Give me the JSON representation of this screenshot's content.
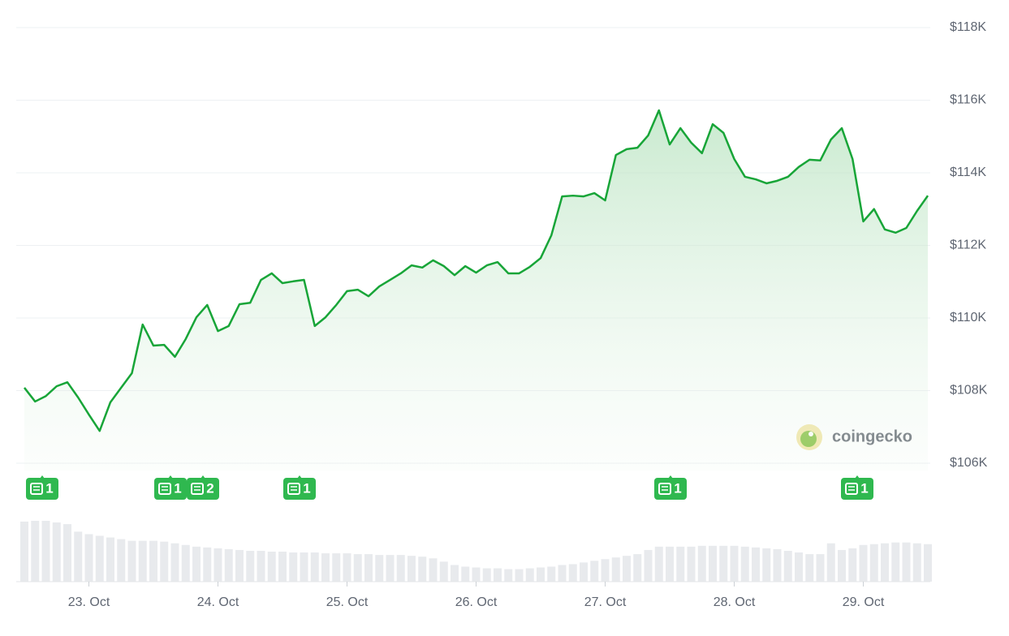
{
  "chart_data": {
    "type": "line",
    "color": "#18a538",
    "categories": [
      null,
      null,
      null,
      null,
      null,
      null,
      "23. Oct",
      null,
      null,
      null,
      null,
      null,
      null,
      null,
      null,
      null,
      null,
      null,
      "24. Oct",
      null,
      null,
      null,
      null,
      null,
      null,
      null,
      null,
      null,
      null,
      null,
      "25. Oct",
      null,
      null,
      null,
      null,
      null,
      null,
      null,
      null,
      null,
      null,
      null,
      "26. Oct",
      null,
      null,
      null,
      null,
      null,
      null,
      null,
      null,
      null,
      null,
      null,
      "27. Oct",
      null,
      null,
      null,
      null,
      null,
      null,
      null,
      null,
      null,
      null,
      null,
      "28. Oct",
      null,
      null,
      null,
      null,
      null,
      null,
      null,
      null,
      null,
      null,
      null,
      "29. Oct",
      null,
      null,
      null,
      null,
      null,
      null
    ],
    "values": [
      108080,
      107700,
      107850,
      108120,
      108230,
      107810,
      107340,
      106890,
      107680,
      108080,
      108480,
      109820,
      109240,
      109260,
      108930,
      109420,
      110020,
      110360,
      109640,
      109780,
      110380,
      110420,
      111050,
      111230,
      110960,
      111010,
      111050,
      109780,
      110020,
      110360,
      110740,
      110780,
      110600,
      110870,
      111050,
      111230,
      111450,
      111390,
      111590,
      111430,
      111180,
      111430,
      111250,
      111450,
      111540,
      111230,
      111230,
      111410,
      111650,
      112280,
      113350,
      113370,
      113350,
      113440,
      113240,
      114490,
      114650,
      114690,
      115030,
      115720,
      114780,
      115230,
      114830,
      114540,
      115340,
      115100,
      114380,
      113890,
      113820,
      113710,
      113780,
      113890,
      114160,
      114360,
      114340,
      114920,
      115230,
      114380,
      112660,
      113000,
      112440,
      112350,
      112480,
      112950,
      113370
    ],
    "volume": {
      "color": "#e8eaed",
      "values": [
        72,
        73,
        73,
        71,
        69,
        60,
        57,
        55,
        53,
        51,
        49,
        49,
        49,
        48,
        46,
        44,
        42,
        41,
        40,
        39,
        38,
        37,
        37,
        36,
        36,
        35,
        35,
        35,
        34,
        34,
        34,
        33,
        33,
        32,
        32,
        32,
        31,
        30,
        28,
        24,
        20,
        18,
        17,
        16,
        16,
        15,
        15,
        16,
        17,
        18,
        20,
        21,
        23,
        25,
        27,
        29,
        31,
        33,
        38,
        42,
        42,
        42,
        42,
        43,
        43,
        43,
        43,
        42,
        41,
        40,
        39,
        37,
        35,
        33,
        33,
        46,
        38,
        40,
        44,
        45,
        46,
        47,
        47,
        46,
        45
      ]
    },
    "ylim": [
      106000,
      118000
    ],
    "yticks": [
      {
        "value": 106000,
        "label": "$106K"
      },
      {
        "value": 108000,
        "label": "$108K"
      },
      {
        "value": 110000,
        "label": "$110K"
      },
      {
        "value": 112000,
        "label": "$112K"
      },
      {
        "value": 114000,
        "label": "$114K"
      },
      {
        "value": 116000,
        "label": "$116K"
      },
      {
        "value": 118000,
        "label": "$118K"
      }
    ],
    "grid": true,
    "news": [
      "1",
      "1",
      "2",
      "1",
      "1",
      "1"
    ],
    "watermark": "coingecko"
  }
}
